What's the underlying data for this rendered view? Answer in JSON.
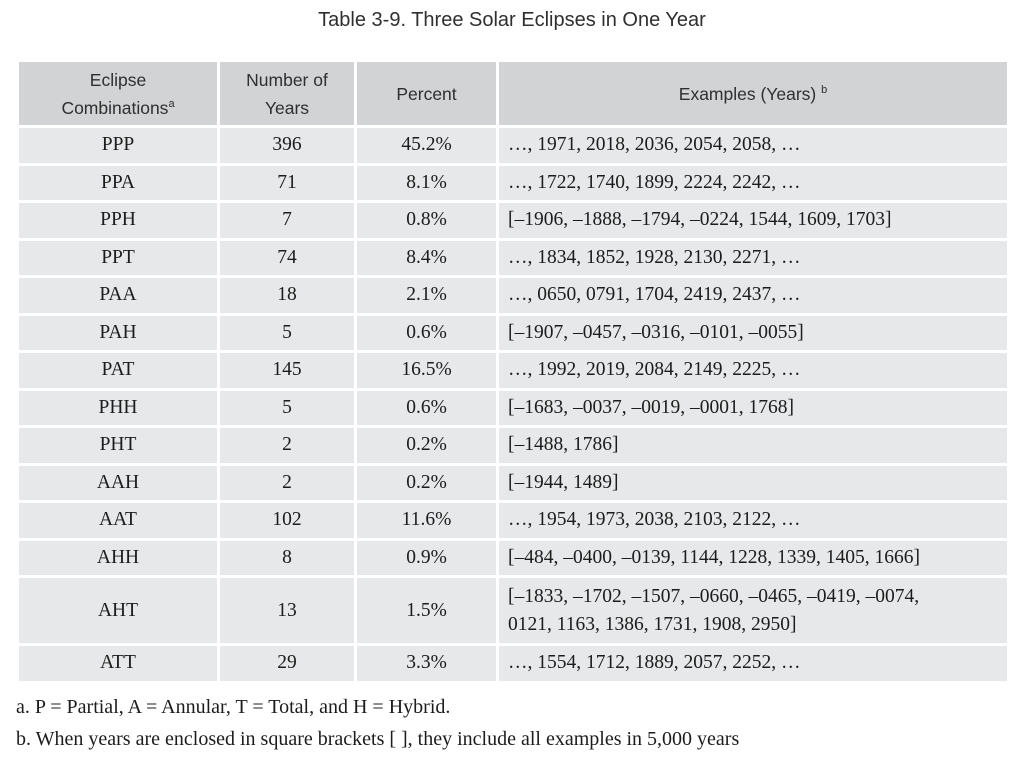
{
  "title": "Table 3-9. Three Solar Eclipses in One Year",
  "colors": {
    "header_bg": "#d1d3d4",
    "row_bg": "#e7e8e9",
    "gridline": "#ffffff",
    "text": "#1c1c1c"
  },
  "table": {
    "headers": [
      {
        "label": "Eclipse Combinations",
        "sup": "a"
      },
      {
        "label": "Number of Years"
      },
      {
        "label": "Percent"
      },
      {
        "label": "Examples (Years)",
        "sup": "b"
      }
    ],
    "rows": [
      {
        "combo": "PPP",
        "years": "396",
        "percent": "45.2%",
        "examples": "…, 1971, 2018, 2036, 2054, 2058, …"
      },
      {
        "combo": "PPA",
        "years": "71",
        "percent": "8.1%",
        "examples": "…, 1722, 1740, 1899, 2224, 2242, …"
      },
      {
        "combo": "PPH",
        "years": "7",
        "percent": "0.8%",
        "examples": "[–1906, –1888, –1794, –0224, 1544, 1609, 1703]"
      },
      {
        "combo": "PPT",
        "years": "74",
        "percent": "8.4%",
        "examples": "…, 1834, 1852, 1928, 2130, 2271, …"
      },
      {
        "combo": "PAA",
        "years": "18",
        "percent": "2.1%",
        "examples": "…, 0650, 0791, 1704, 2419, 2437, …"
      },
      {
        "combo": "PAH",
        "years": "5",
        "percent": "0.6%",
        "examples": "[–1907, –0457, –0316, –0101, –0055]"
      },
      {
        "combo": "PAT",
        "years": "145",
        "percent": "16.5%",
        "examples": "…, 1992, 2019, 2084, 2149, 2225, …"
      },
      {
        "combo": "PHH",
        "years": "5",
        "percent": "0.6%",
        "examples": "[–1683, –0037, –0019, –0001, 1768]"
      },
      {
        "combo": "PHT",
        "years": "2",
        "percent": "0.2%",
        "examples": "[–1488, 1786]"
      },
      {
        "combo": "AAH",
        "years": "2",
        "percent": "0.2%",
        "examples": "[–1944, 1489]"
      },
      {
        "combo": "AAT",
        "years": "102",
        "percent": "11.6%",
        "examples": "…, 1954, 1973, 2038, 2103, 2122, …"
      },
      {
        "combo": "AHH",
        "years": "8",
        "percent": "0.9%",
        "examples": "[–484, –0400, –0139, 1144, 1228, 1339, 1405, 1666]"
      },
      {
        "combo": "AHT",
        "years": "13",
        "percent": "1.5%",
        "examples": "[–1833, –1702, –1507, –0660, –0465, –0419, –0074,\n0121, 1163, 1386, 1731, 1908, 2950]"
      },
      {
        "combo": "ATT",
        "years": "29",
        "percent": "3.3%",
        "examples": "…, 1554, 1712, 1889, 2057, 2252, …"
      }
    ]
  },
  "footnotes": [
    "a. P = Partial, A = Annular, T = Total, and H = Hybrid.",
    "b. When years are enclosed in square brackets [ ], they include all examples in 5,000 years"
  ]
}
